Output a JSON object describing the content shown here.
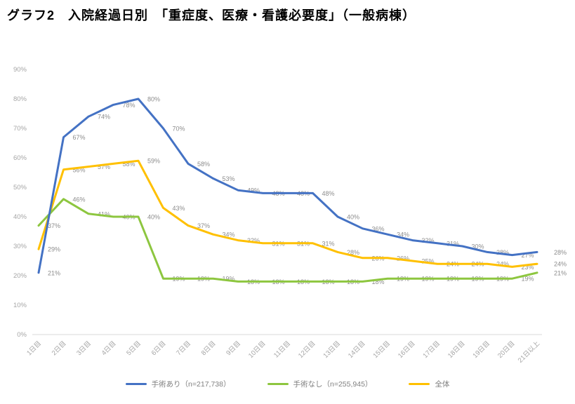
{
  "chart_data": {
    "type": "line",
    "title": "グラフ2　入院経過日別　「重症度、医療・看護必要度」（一般病棟）",
    "categories": [
      "1日目",
      "2日目",
      "3日目",
      "4日目",
      "5日目",
      "6日目",
      "7日目",
      "8日目",
      "9日目",
      "10日目",
      "11日目",
      "12日目",
      "13日目",
      "14日目",
      "15日目",
      "16日目",
      "17日目",
      "18日目",
      "19日目",
      "20日目",
      "21日以上"
    ],
    "series": [
      {
        "name": "手術あり（n=217,738）",
        "color": "#4472C4",
        "values": [
          21,
          67,
          74,
          78,
          80,
          70,
          58,
          53,
          49,
          48,
          48,
          48,
          40,
          36,
          34,
          32,
          31,
          30,
          28,
          27,
          28
        ]
      },
      {
        "name": "手術なし（n=255,945）",
        "color": "#8DC63F",
        "values": [
          37,
          46,
          41,
          40,
          40,
          19,
          19,
          19,
          18,
          18,
          18,
          18,
          18,
          18,
          19,
          19,
          19,
          19,
          19,
          19,
          21
        ]
      },
      {
        "name": "全体",
        "color": "#FFC000",
        "values": [
          29,
          56,
          57,
          58,
          59,
          43,
          37,
          34,
          32,
          31,
          31,
          31,
          28,
          26,
          26,
          25,
          24,
          24,
          24,
          23,
          24
        ]
      }
    ],
    "y_axis": {
      "min": 0,
      "max": 90,
      "step": 10,
      "suffix": "%"
    },
    "data_label_suffix": "%",
    "legend_position": "bottom",
    "grid": false,
    "axis_color": "#A6A6A6",
    "label_color": "#8C8C8C",
    "baseline_color": "#D9D9D9"
  }
}
